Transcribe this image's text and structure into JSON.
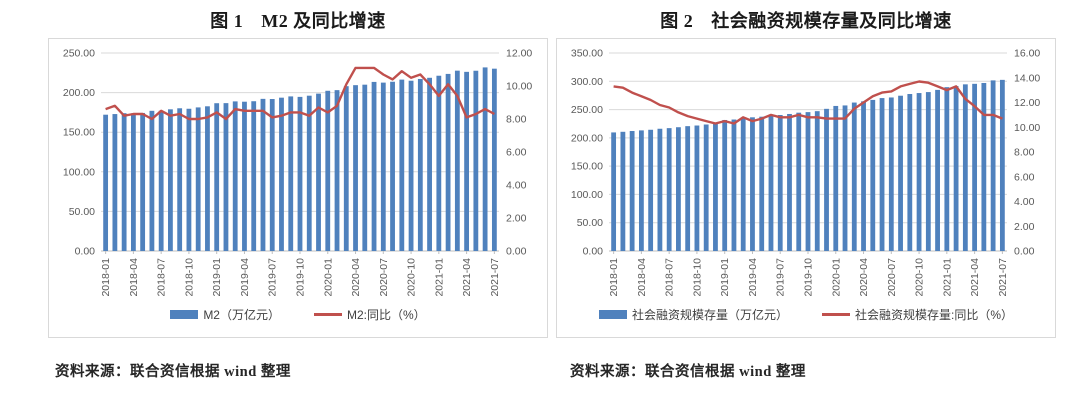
{
  "source_notes": [
    "资料来源：联合资信根据 wind 整理",
    "资料来源：联合资信根据 wind 整理"
  ],
  "colors": {
    "bar": "#4F81BD",
    "line": "#C0504D",
    "gridline": "#D9D9D9",
    "axis_line": "#BFBFBF",
    "axis_text": "#595959",
    "panel_border": "#D9D9D9"
  },
  "chart_data": [
    {
      "type": "bar+line combo, dual axis",
      "figure_label": "图 1",
      "title": "M2 及同比增速",
      "x_tick_every": 3,
      "categories": [
        "2018-01",
        "2018-02",
        "2018-03",
        "2018-04",
        "2018-05",
        "2018-06",
        "2018-07",
        "2018-08",
        "2018-09",
        "2018-10",
        "2018-11",
        "2018-12",
        "2019-01",
        "2019-02",
        "2019-03",
        "2019-04",
        "2019-05",
        "2019-06",
        "2019-07",
        "2019-08",
        "2019-09",
        "2019-10",
        "2019-11",
        "2019-12",
        "2020-01",
        "2020-02",
        "2020-03",
        "2020-04",
        "2020-05",
        "2020-06",
        "2020-07",
        "2020-08",
        "2020-09",
        "2020-10",
        "2020-11",
        "2020-12",
        "2021-01",
        "2021-02",
        "2021-03",
        "2021-04",
        "2021-05",
        "2021-06",
        "2021-07"
      ],
      "series": [
        {
          "name": "M2（万亿元）",
          "type": "bar",
          "axis": "left",
          "color": "#4F81BD",
          "values": [
            172.1,
            172.9,
            174.0,
            173.8,
            174.3,
            177.0,
            177.1,
            178.9,
            180.2,
            179.6,
            181.3,
            182.7,
            186.6,
            186.7,
            188.9,
            188.5,
            189.1,
            192.1,
            191.9,
            193.6,
            195.2,
            194.6,
            196.1,
            198.7,
            202.3,
            203.1,
            208.1,
            209.4,
            210.0,
            213.5,
            212.6,
            213.7,
            216.4,
            215.0,
            217.2,
            218.7,
            221.3,
            223.6,
            227.7,
            226.2,
            227.6,
            231.8,
            230.2
          ]
        },
        {
          "name": "M2:同比（%）",
          "type": "line",
          "axis": "right",
          "color": "#C0504D",
          "values": [
            8.6,
            8.8,
            8.2,
            8.3,
            8.3,
            8.0,
            8.5,
            8.2,
            8.3,
            8.0,
            8.0,
            8.1,
            8.4,
            8.0,
            8.6,
            8.5,
            8.5,
            8.5,
            8.1,
            8.2,
            8.4,
            8.4,
            8.2,
            8.7,
            8.4,
            8.8,
            10.1,
            11.1,
            11.1,
            11.1,
            10.7,
            10.4,
            10.9,
            10.5,
            10.7,
            10.1,
            9.4,
            10.1,
            9.4,
            8.1,
            8.3,
            8.6,
            8.3
          ]
        }
      ],
      "left_axis": {
        "min": 0,
        "max": 250,
        "step": 50,
        "tick_labels": [
          "0.00",
          "50.00",
          "100.00",
          "150.00",
          "200.00",
          "250.00"
        ]
      },
      "right_axis": {
        "min": 0,
        "max": 12,
        "step": 2,
        "tick_labels": [
          "0.00",
          "2.00",
          "4.00",
          "6.00",
          "8.00",
          "10.00",
          "12.00"
        ]
      },
      "grid": "horizontal, light gray",
      "legend_position": "bottom center"
    },
    {
      "type": "bar+line combo, dual axis",
      "figure_label": "图 2",
      "title": "社会融资规模存量及同比增速",
      "x_tick_every": 3,
      "categories": [
        "2018-01",
        "2018-02",
        "2018-03",
        "2018-04",
        "2018-05",
        "2018-06",
        "2018-07",
        "2018-08",
        "2018-09",
        "2018-10",
        "2018-11",
        "2018-12",
        "2019-01",
        "2019-02",
        "2019-03",
        "2019-04",
        "2019-05",
        "2019-06",
        "2019-07",
        "2019-08",
        "2019-09",
        "2019-10",
        "2019-11",
        "2019-12",
        "2020-01",
        "2020-02",
        "2020-03",
        "2020-04",
        "2020-05",
        "2020-06",
        "2020-07",
        "2020-08",
        "2020-09",
        "2020-10",
        "2020-11",
        "2020-12",
        "2021-01",
        "2021-02",
        "2021-03",
        "2021-04",
        "2021-05",
        "2021-06",
        "2021-07"
      ],
      "series": [
        {
          "name": "社会融资规模存量（万亿元）",
          "type": "bar",
          "axis": "left",
          "color": "#4F81BD",
          "values": [
            209.6,
            210.7,
            212.1,
            213.2,
            214.3,
            216.1,
            217.2,
            218.8,
            220.7,
            221.8,
            223.6,
            227.0,
            231.6,
            232.4,
            235.4,
            236.3,
            237.4,
            239.6,
            240.4,
            242.2,
            244.5,
            245.5,
            247.2,
            251.3,
            256.4,
            257.3,
            262.4,
            264.6,
            267.1,
            270.3,
            271.4,
            274.5,
            277.5,
            279.2,
            280.9,
            284.8,
            289.6,
            291.5,
            294.6,
            295.5,
            297.0,
            301.6,
            302.5
          ]
        },
        {
          "name": "社会融资规模存量:同比（%）",
          "type": "line",
          "axis": "right",
          "color": "#C0504D",
          "values": [
            13.3,
            13.2,
            12.8,
            12.5,
            12.2,
            11.8,
            11.6,
            11.2,
            10.9,
            10.7,
            10.5,
            10.3,
            10.5,
            10.3,
            10.8,
            10.5,
            10.7,
            11.0,
            10.8,
            10.8,
            11.0,
            10.8,
            10.8,
            10.7,
            10.7,
            10.7,
            11.5,
            12.0,
            12.5,
            12.8,
            12.9,
            13.3,
            13.5,
            13.7,
            13.6,
            13.3,
            13.0,
            13.3,
            12.3,
            11.7,
            11.0,
            11.0,
            10.7
          ]
        }
      ],
      "left_axis": {
        "min": 0,
        "max": 350,
        "step": 50,
        "tick_labels": [
          "0.00",
          "50.00",
          "100.00",
          "150.00",
          "200.00",
          "250.00",
          "300.00",
          "350.00"
        ]
      },
      "right_axis": {
        "min": 0,
        "max": 16,
        "step": 2,
        "tick_labels": [
          "0.00",
          "2.00",
          "4.00",
          "6.00",
          "8.00",
          "10.00",
          "12.00",
          "14.00",
          "16.00"
        ]
      },
      "grid": "horizontal, light gray",
      "legend_position": "bottom center"
    }
  ]
}
